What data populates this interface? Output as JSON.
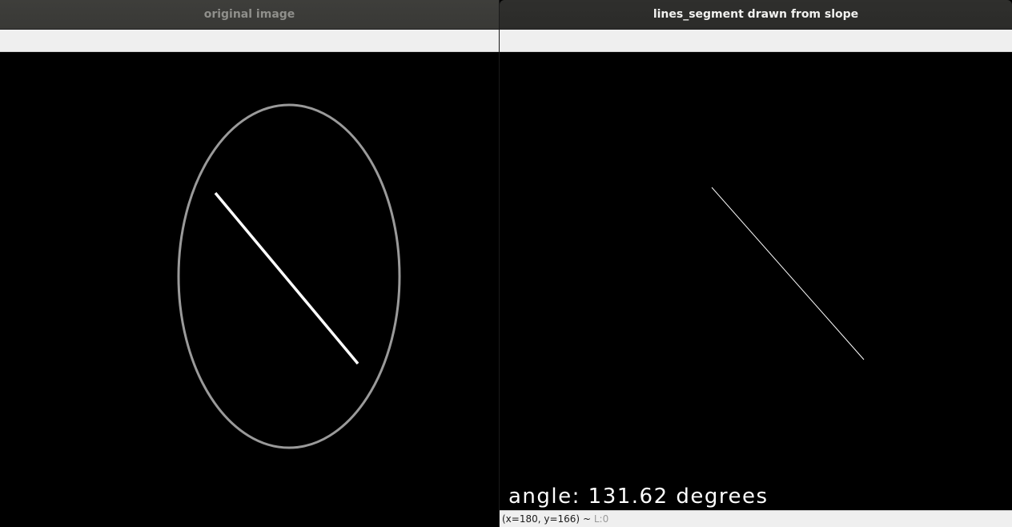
{
  "windows": {
    "left": {
      "title": "original image"
    },
    "right": {
      "title": "lines_segment drawn from slope",
      "overlay_text": "angle: 131.62 degrees",
      "status": {
        "coordinates": "(x=180, y=166)",
        "separator": "~",
        "level": "L:0"
      }
    }
  },
  "colors": {
    "canvas_background": "#000000",
    "ellipse_stroke": "#9a9a9a",
    "line_stroke": "#ffffff",
    "overlay_text": "#ffffff",
    "toolbar_background": "#efefef",
    "left_title_text": "#8f8f8b",
    "right_title_text": "#f2f2f0"
  }
}
